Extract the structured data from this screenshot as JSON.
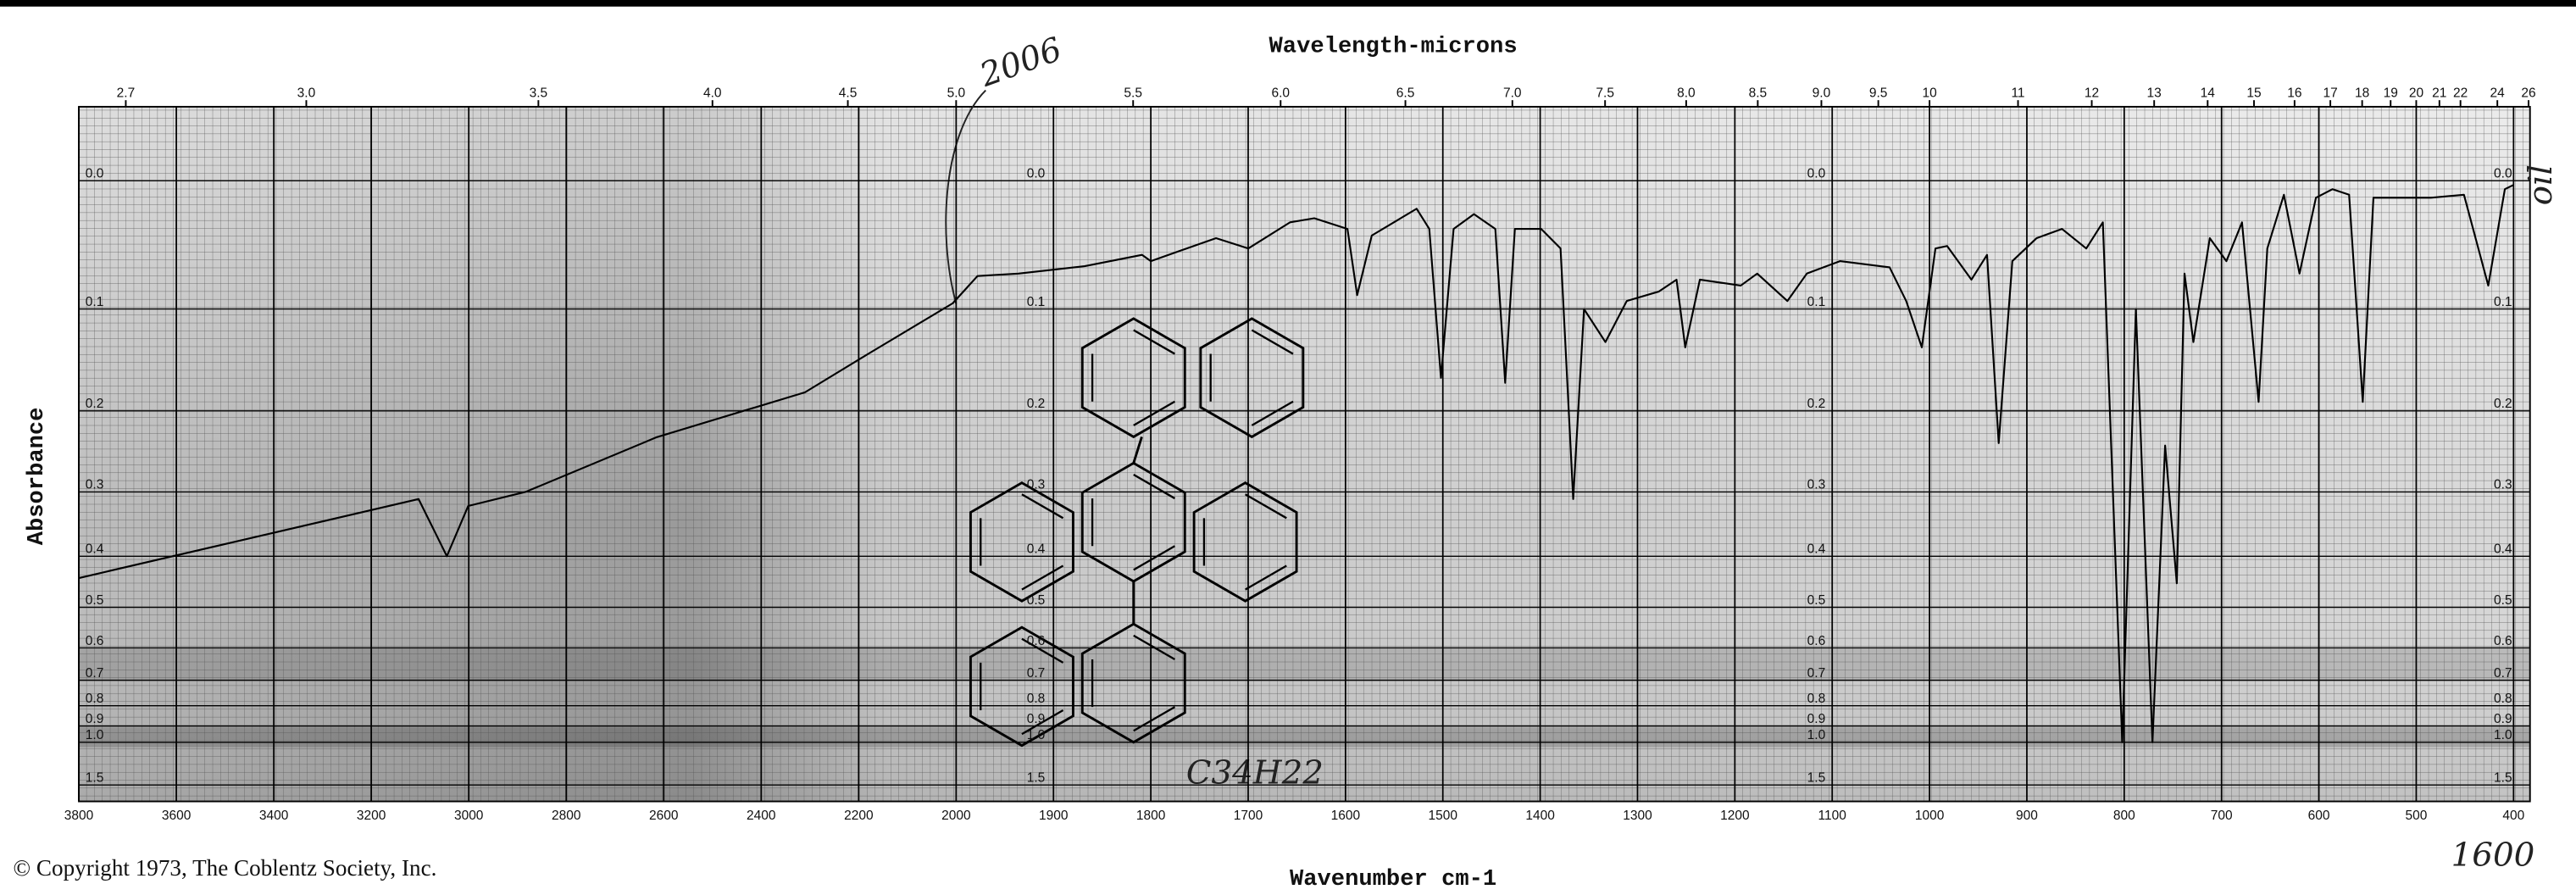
{
  "chart_data": {
    "type": "line",
    "title": "Wavelength-microns",
    "xlabel": "Wavenumber cm-1",
    "ylabel": "Absorbance",
    "copyright": "© Copyright 1973, The Coblentz Society, Inc.",
    "annotations": [
      "2006",
      "oil",
      "C34H22",
      "1600"
    ],
    "color": "#000000",
    "grid": true,
    "yscale": "absorbance",
    "xlim": [
      3800,
      400
    ],
    "xscale_break": 2000,
    "xticks": [
      3800,
      3600,
      3400,
      3200,
      3000,
      2800,
      2600,
      2400,
      2200,
      2000,
      1900,
      1800,
      1700,
      1600,
      1500,
      1400,
      1300,
      1200,
      1100,
      1000,
      900,
      800,
      700,
      600,
      500,
      400
    ],
    "x2ticks": [
      2.7,
      {
        "value": 3,
        "label": "3.0"
      },
      3.5,
      {
        "value": 4,
        "label": "4.0"
      },
      4.5,
      {
        "value": 5,
        "label": "5.0"
      },
      5.5,
      {
        "value": 6,
        "label": "6.0"
      },
      6.5,
      {
        "value": 7,
        "label": "7.0"
      },
      7.5,
      {
        "value": 8,
        "label": "8.0"
      },
      8.5,
      {
        "value": 9,
        "label": "9.0"
      },
      9.5,
      10,
      11,
      12,
      13,
      14,
      15,
      16,
      17,
      18,
      19,
      20,
      21,
      22,
      24,
      26
    ],
    "yticks": [
      {
        "value": 0,
        "label": "0.0"
      },
      0.1,
      0.2,
      0.3,
      0.4,
      0.5,
      0.6,
      0.7,
      0.8,
      0.9,
      {
        "value": 1,
        "label": "1.0"
      },
      1.5
    ],
    "x": [
      3800,
      3103,
      3045,
      3001,
      2883,
      2614,
      2310,
      2176,
      2007,
      1978,
      1936,
      1868,
      1809,
      1800,
      1733,
      1700,
      1657,
      1632,
      1598,
      1588,
      1573,
      1527,
      1514,
      1502,
      1489,
      1468,
      1446,
      1436,
      1426,
      1399,
      1379,
      1366,
      1355,
      1333,
      1311,
      1278,
      1260,
      1251,
      1236,
      1194,
      1177,
      1146,
      1126,
      1092,
      1041,
      1024,
      1008,
      994,
      982,
      957,
      941,
      929,
      915,
      890,
      864,
      839,
      822,
      802,
      788,
      771,
      758,
      746,
      738,
      729,
      712,
      695,
      679,
      662,
      653,
      636,
      620,
      603,
      586,
      569,
      555,
      544,
      485,
      451,
      426,
      409,
      400
    ],
    "values": [
      0.44,
      0.31,
      0.4,
      0.32,
      0.3,
      0.23,
      0.18,
      0.14,
      0.095,
      0.072,
      0.07,
      0.064,
      0.055,
      0.06,
      0.042,
      0.05,
      0.03,
      0.027,
      0.035,
      0.088,
      0.04,
      0.02,
      0.035,
      0.165,
      0.035,
      0.024,
      0.035,
      0.17,
      0.035,
      0.035,
      0.05,
      0.31,
      0.1,
      0.13,
      0.093,
      0.085,
      0.075,
      0.135,
      0.075,
      0.08,
      0.07,
      0.093,
      0.07,
      0.06,
      0.065,
      0.093,
      0.135,
      0.05,
      0.048,
      0.075,
      0.055,
      0.237,
      0.06,
      0.042,
      0.035,
      0.05,
      0.03,
      1.0,
      0.1,
      1.0,
      0.24,
      0.45,
      0.07,
      0.13,
      0.042,
      0.06,
      0.03,
      0.19,
      0.05,
      0.01,
      0.07,
      0.012,
      0.006,
      0.01,
      0.19,
      0.012,
      0.012,
      0.01,
      0.08,
      0.006,
      0.003
    ]
  }
}
